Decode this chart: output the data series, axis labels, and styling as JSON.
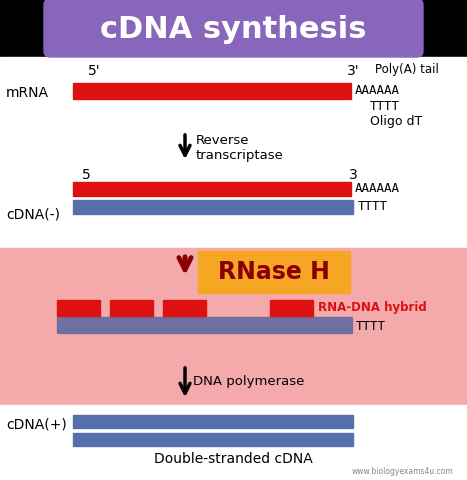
{
  "title": "cDNA synthesis",
  "title_bg": "#8866bb",
  "title_color": "white",
  "title_fontsize": 22,
  "section1_bg": "white",
  "section2_bg": "#f4aaaa",
  "section3_bg": "white",
  "red_color": "#dd1111",
  "blue_color": "#5570aa",
  "purple_color": "#7070a0",
  "dark_red": "#880000",
  "mrna_label": "mRNA",
  "mrna_5prime": "5'",
  "mrna_3prime": "3'",
  "poly_a_tail": "Poly(A) tail",
  "aaaaaa1": "AAAAAA",
  "tttt1": "TTTT",
  "oligo_dt": "Oligo dT",
  "arrow1_label_line1": "Reverse",
  "arrow1_label_line2": "transcriptase",
  "cdna_minus": "cDNA(-)",
  "num5": "5",
  "num3": "3",
  "aaaaaa2": "AAAAAA",
  "tttt2": "TTTT",
  "rnase_label": "RNase H",
  "rnase_bg": "#f5a623",
  "rna_dna_hybrid": "RNA-DNA hybrid",
  "tttt3": "TTTT",
  "arrow2_label": "DNA polymerase",
  "cdna_plus": "cDNA(+)",
  "double_stranded": "Double-stranded cDNA",
  "watermark": "www.biologyexams4u.com",
  "fig_w": 4.67,
  "fig_h": 4.8,
  "dpi": 100
}
